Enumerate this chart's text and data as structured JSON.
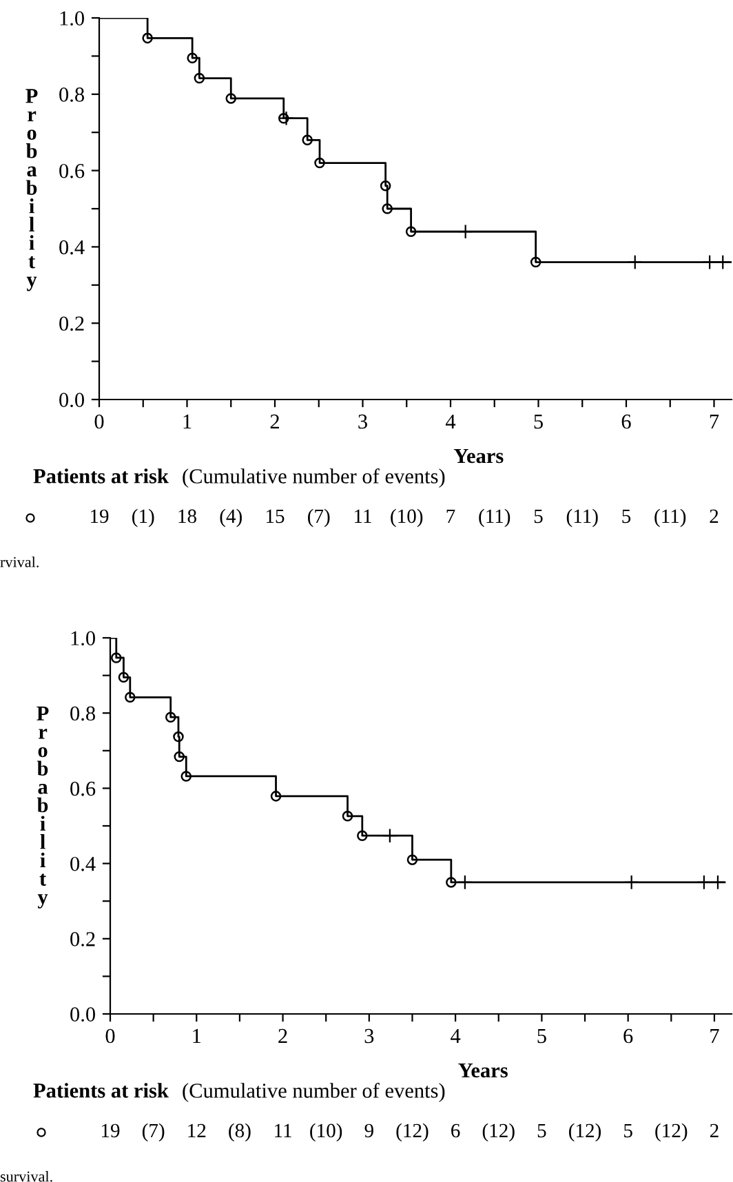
{
  "chart_data": [
    {
      "type": "step",
      "xlabel": "Years",
      "ylabel": "Probability",
      "xlim": [
        0,
        7.2
      ],
      "ylim": [
        0,
        1.0
      ],
      "xticks": [
        0,
        {
          "value": 0.5,
          "label": null
        },
        1,
        {
          "value": 1.5,
          "label": null
        },
        2,
        {
          "value": 2.5,
          "label": null
        },
        3,
        {
          "value": 3.5,
          "label": null
        },
        4,
        {
          "value": 4.5,
          "label": null
        },
        5,
        {
          "value": 5.5,
          "label": null
        },
        6,
        {
          "value": 6.5,
          "label": null
        },
        7
      ],
      "yticks": [
        {
          "value": 0,
          "label": "0.0"
        },
        {
          "value": 0.1,
          "label": null
        },
        0.2,
        {
          "value": 0.3,
          "label": null
        },
        0.4,
        {
          "value": 0.5,
          "label": null
        },
        0.6,
        {
          "value": 0.7,
          "label": null
        },
        0.8,
        {
          "value": 0.9,
          "label": null
        },
        {
          "value": 1,
          "label": "1.0"
        }
      ],
      "grid": false,
      "legend": false,
      "series": [
        {
          "color": "#000000",
          "marker": "none",
          "x": [
            0,
            0.55,
            1.06,
            1.14,
            1.5,
            2.1,
            2.37,
            2.51,
            3.26,
            3.28,
            3.55,
            4.97,
            7.2
          ],
          "values": [
            1.0,
            0.947,
            0.895,
            0.842,
            0.789,
            0.737,
            0.68,
            0.62,
            0.56,
            0.5,
            0.44,
            0.36,
            0.36
          ]
        },
        {
          "type": "scatter",
          "color": "#000000",
          "marker": "circle",
          "x": [
            0.55,
            1.06,
            1.14,
            1.5,
            2.1,
            2.37,
            2.51,
            3.26,
            3.28,
            3.55,
            4.97
          ],
          "values": [
            0.947,
            0.895,
            0.842,
            0.789,
            0.737,
            0.68,
            0.62,
            0.56,
            0.5,
            0.44,
            0.36
          ]
        },
        {
          "type": "scatter",
          "color": "#000000",
          "marker": "cross",
          "x": [
            2.13,
            4.17,
            6.1,
            6.95,
            7.1
          ],
          "values": [
            0.737,
            0.44,
            0.36,
            0.36,
            0.36
          ]
        }
      ],
      "annotations": [
        "Patients at risk",
        "(Cumulative number of events)",
        "19",
        "(1)",
        "18",
        "(4)",
        "15",
        "(7)",
        "11",
        "(10)",
        "7",
        "(11)",
        "5",
        "(11)",
        "5",
        "(11)",
        "2",
        "rvival."
      ]
    },
    {
      "type": "step",
      "xlabel": "Years",
      "ylabel": "Probability",
      "xlim": [
        0,
        7.2
      ],
      "ylim": [
        0,
        1.0
      ],
      "xticks": [
        0,
        {
          "value": 0.5,
          "label": null
        },
        1,
        {
          "value": 1.5,
          "label": null
        },
        2,
        {
          "value": 2.5,
          "label": null
        },
        3,
        {
          "value": 3.5,
          "label": null
        },
        4,
        {
          "value": 4.5,
          "label": null
        },
        5,
        {
          "value": 5.5,
          "label": null
        },
        6,
        {
          "value": 6.5,
          "label": null
        },
        7
      ],
      "yticks": [
        {
          "value": 0,
          "label": "0.0"
        },
        {
          "value": 0.1,
          "label": null
        },
        0.2,
        {
          "value": 0.3,
          "label": null
        },
        0.4,
        {
          "value": 0.5,
          "label": null
        },
        0.6,
        {
          "value": 0.7,
          "label": null
        },
        0.8,
        {
          "value": 0.9,
          "label": null
        },
        {
          "value": 1,
          "label": "1.0"
        }
      ],
      "grid": false,
      "legend": false,
      "series": [
        {
          "color": "#000000",
          "marker": "none",
          "x": [
            0,
            0.07,
            0.155,
            0.23,
            0.7,
            0.79,
            0.8,
            0.88,
            1.92,
            2.75,
            2.92,
            3.5,
            3.95,
            7.12
          ],
          "values": [
            1.0,
            0.947,
            0.895,
            0.842,
            0.789,
            0.737,
            0.684,
            0.632,
            0.579,
            0.526,
            0.474,
            0.41,
            0.35,
            0.35
          ]
        },
        {
          "type": "scatter",
          "color": "#000000",
          "marker": "circle",
          "x": [
            0.07,
            0.155,
            0.23,
            0.7,
            0.79,
            0.8,
            0.88,
            1.92,
            2.75,
            2.92,
            3.5,
            3.95
          ],
          "values": [
            0.947,
            0.895,
            0.842,
            0.789,
            0.737,
            0.684,
            0.632,
            0.579,
            0.526,
            0.474,
            0.41,
            0.35
          ]
        },
        {
          "type": "scatter",
          "color": "#000000",
          "marker": "cross",
          "x": [
            3.24,
            4.11,
            6.04,
            6.88,
            7.04
          ],
          "values": [
            0.474,
            0.35,
            0.35,
            0.35,
            0.35
          ]
        }
      ],
      "annotations": [
        "Patients at risk",
        "(Cumulative number of events)",
        "19",
        "(7)",
        "12",
        "(8)",
        "11",
        "(10)",
        "9",
        "(12)",
        "6",
        "(12)",
        "5",
        "(12)",
        "5",
        "(12)",
        "2",
        "survival."
      ]
    }
  ]
}
